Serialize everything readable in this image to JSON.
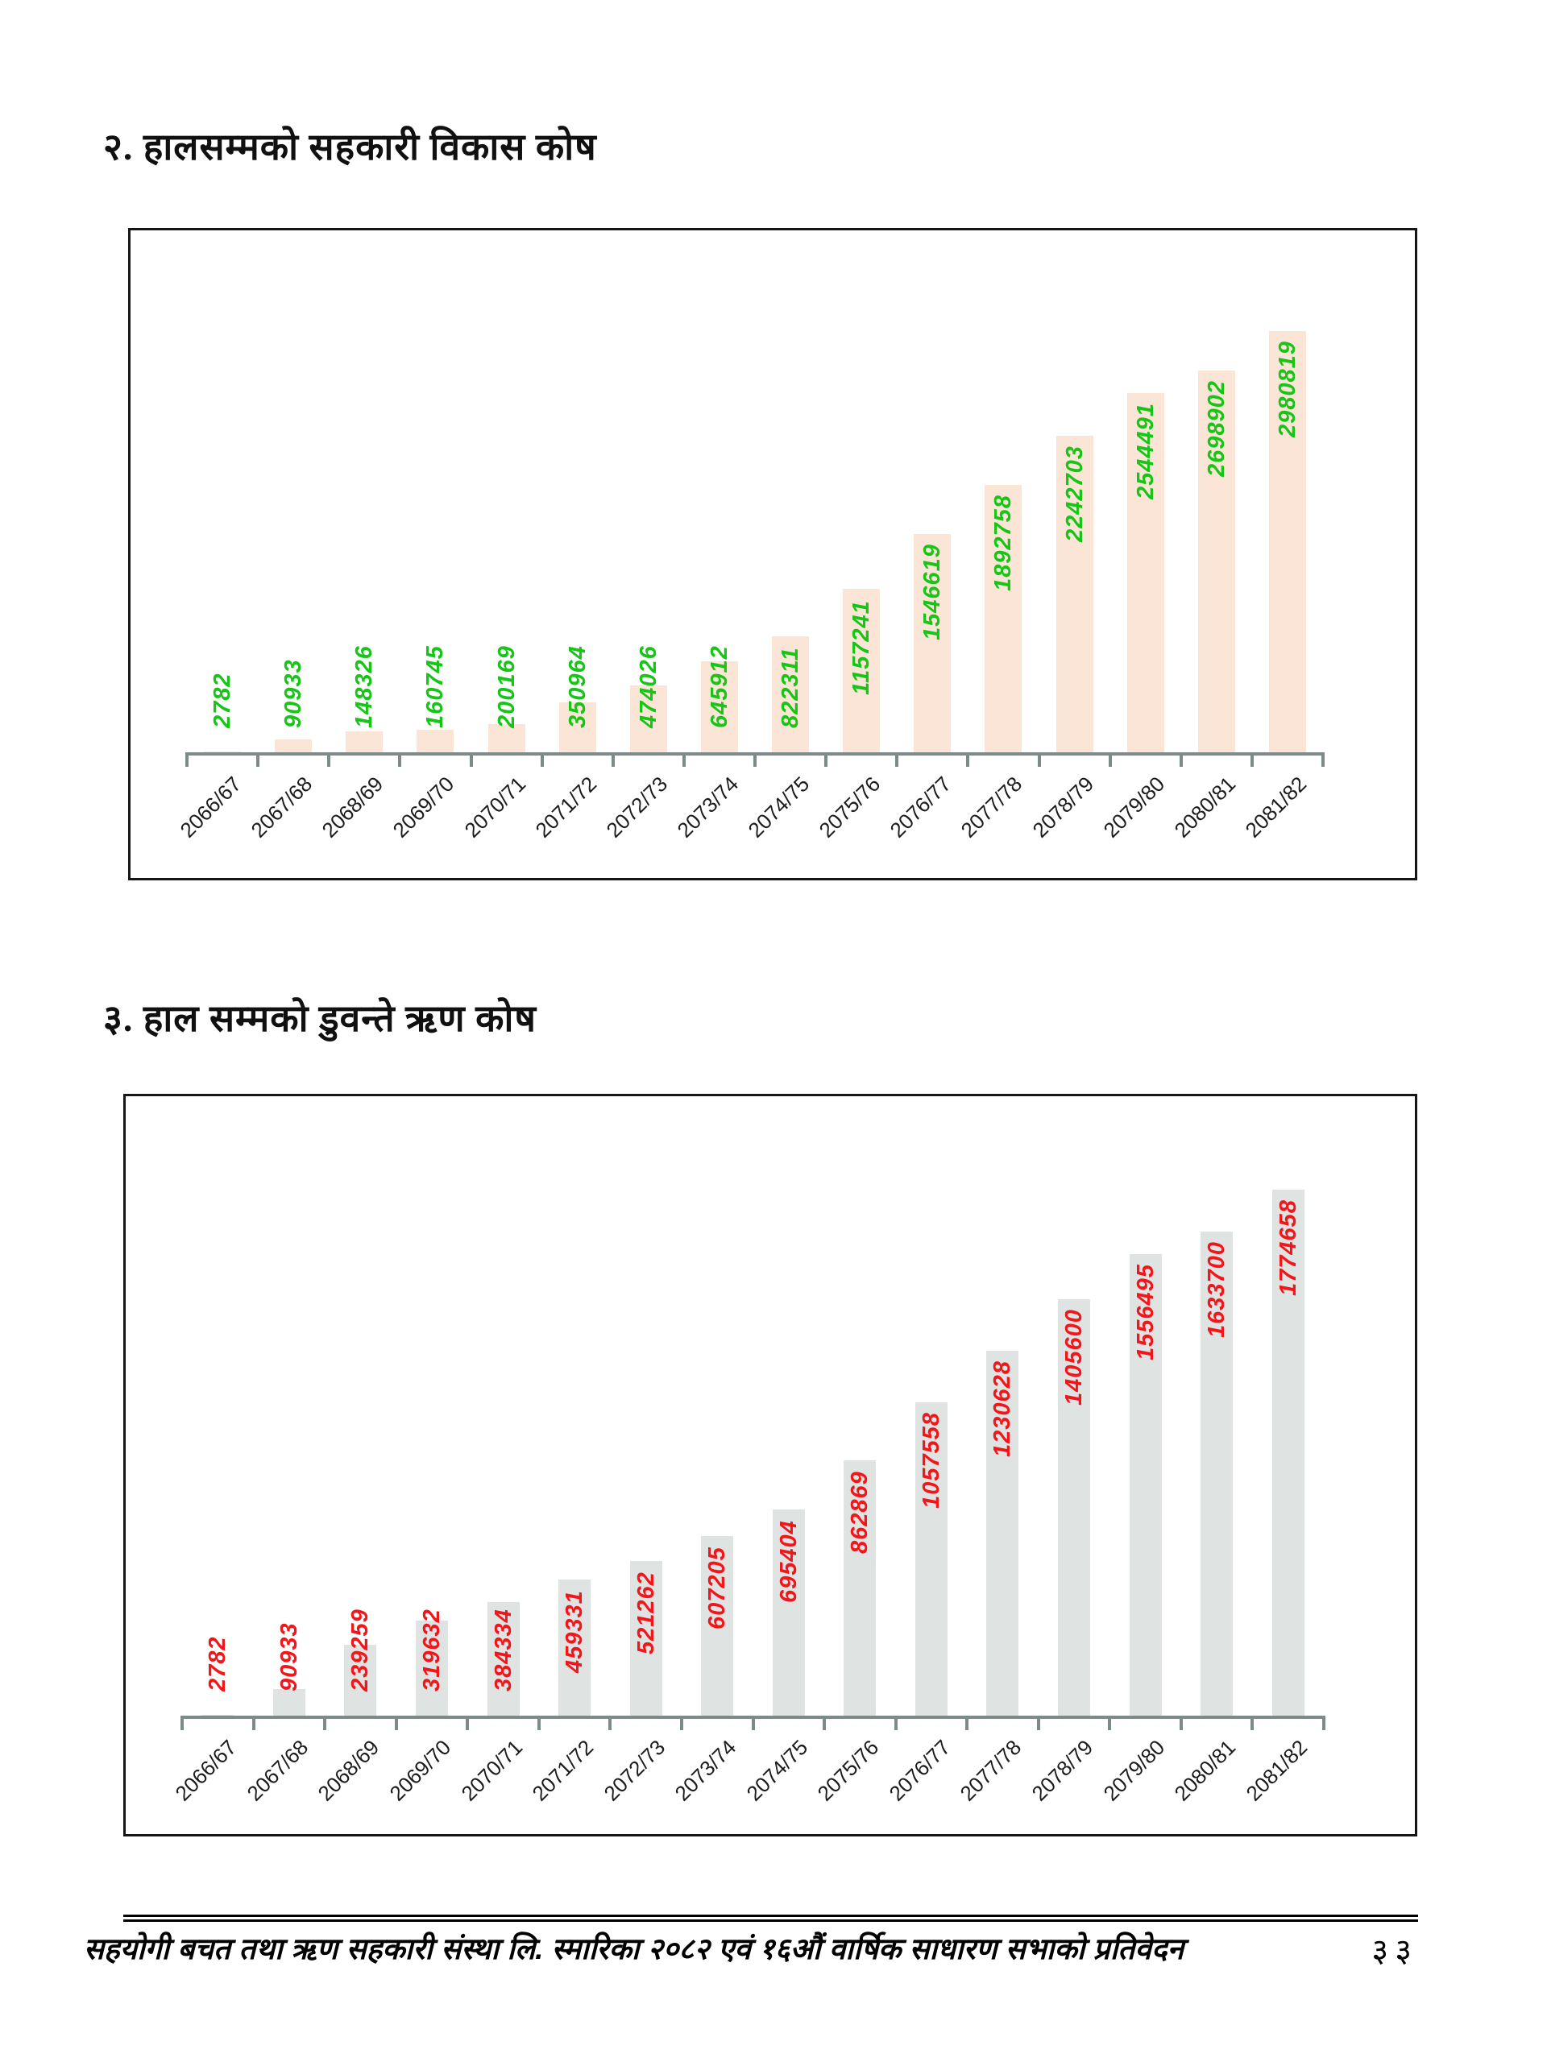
{
  "page": {
    "section2_heading": "२. हालसम्मको सहकारी विकास कोष",
    "section3_heading": "३. हाल सम्मको डुवन्ते ऋण कोष",
    "footer_text": "सहयोगी बचत तथा ऋण सहकारी संस्था लि. स्मारिका २०८२ एवं १६औं वार्षिक साधारण सभाको प्रतिवेदन",
    "page_number": "३३"
  },
  "chart_data": [
    {
      "type": "bar",
      "title": "हालसम्मको सहकारी विकास कोष",
      "categories": [
        "2066/67",
        "2067/68",
        "2068/69",
        "2069/70",
        "2070/71",
        "2071/72",
        "2072/73",
        "2073/74",
        "2074/75",
        "2075/76",
        "2076/77",
        "2077/78",
        "2078/79",
        "2079/80",
        "2080/81",
        "2081/82"
      ],
      "values": [
        2782,
        90933,
        148326,
        160745,
        200169,
        350964,
        474026,
        645912,
        822311,
        1157241,
        1546619,
        1892758,
        2242703,
        2544491,
        2698902,
        2980819
      ],
      "xlabel": "",
      "ylabel": "",
      "ylim": [
        0,
        3100000
      ],
      "grid": false,
      "legend": "none",
      "bar_color": "#fbe5d6",
      "label_color": "#17c517",
      "axis_color": "#7d8a8a",
      "tick_label_color": "#1c1c1c"
    },
    {
      "type": "bar",
      "title": "हाल सम्मको डुवन्ते ऋण कोष",
      "categories": [
        "2066/67",
        "2067/68",
        "2068/69",
        "2069/70",
        "2070/71",
        "2071/72",
        "2072/73",
        "2073/74",
        "2074/75",
        "2075/76",
        "2076/77",
        "2077/78",
        "2078/79",
        "2079/80",
        "2080/81",
        "2081/82"
      ],
      "values": [
        2782,
        90933,
        239259,
        319632,
        384334,
        459331,
        521262,
        607205,
        695404,
        862869,
        1057558,
        1230628,
        1405600,
        1556495,
        1633700,
        1774658
      ],
      "xlabel": "",
      "ylabel": "",
      "ylim": [
        0,
        1850000
      ],
      "grid": false,
      "legend": "none",
      "bar_color": "#dfe3e2",
      "label_color": "#f2151a",
      "axis_color": "#7d8a8a",
      "tick_label_color": "#1c1c1c"
    }
  ]
}
